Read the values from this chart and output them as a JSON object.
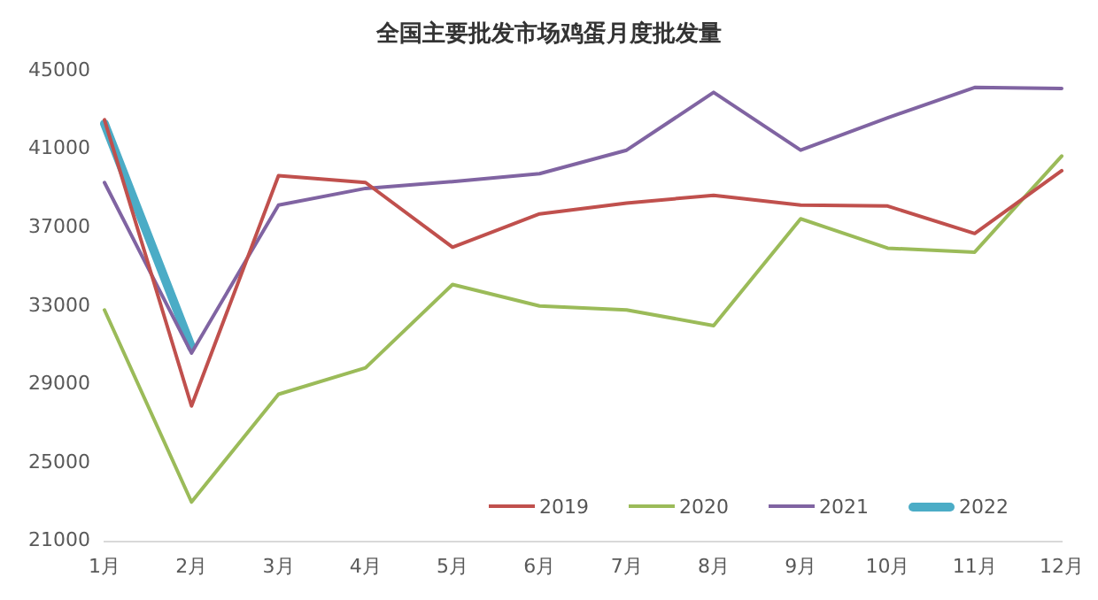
{
  "chart_data": {
    "type": "line",
    "title": "全国主要批发市场鸡蛋月度批发量",
    "categories": [
      "1月",
      "2月",
      "3月",
      "4月",
      "5月",
      "6月",
      "7月",
      "8月",
      "9月",
      "10月",
      "11月",
      "12月"
    ],
    "series": [
      {
        "name": "2019",
        "color": "#c0504d",
        "values": [
          42500,
          27900,
          39650,
          39300,
          36000,
          37700,
          38250,
          38650,
          38150,
          38100,
          36700,
          39900
        ]
      },
      {
        "name": "2020",
        "color": "#9bbb59",
        "values": [
          32800,
          23000,
          28500,
          29850,
          34100,
          33000,
          32800,
          32000,
          37450,
          35950,
          35750,
          40650
        ]
      },
      {
        "name": "2021",
        "color": "#8064a2",
        "values": [
          39300,
          30600,
          38150,
          39000,
          39350,
          39750,
          40950,
          43900,
          40950,
          42600,
          44150,
          44100
        ]
      },
      {
        "name": "2022",
        "color": "#4bacc6",
        "values": [
          42300,
          30900,
          null,
          null,
          null,
          null,
          null,
          null,
          null,
          null,
          null,
          null
        ]
      }
    ],
    "ylim": [
      21000,
      45000
    ],
    "yticks": [
      21000,
      25000,
      29000,
      33000,
      37000,
      41000,
      45000
    ],
    "grid": false,
    "legend": "bottom right",
    "marker": "none",
    "line_style": "solid"
  }
}
